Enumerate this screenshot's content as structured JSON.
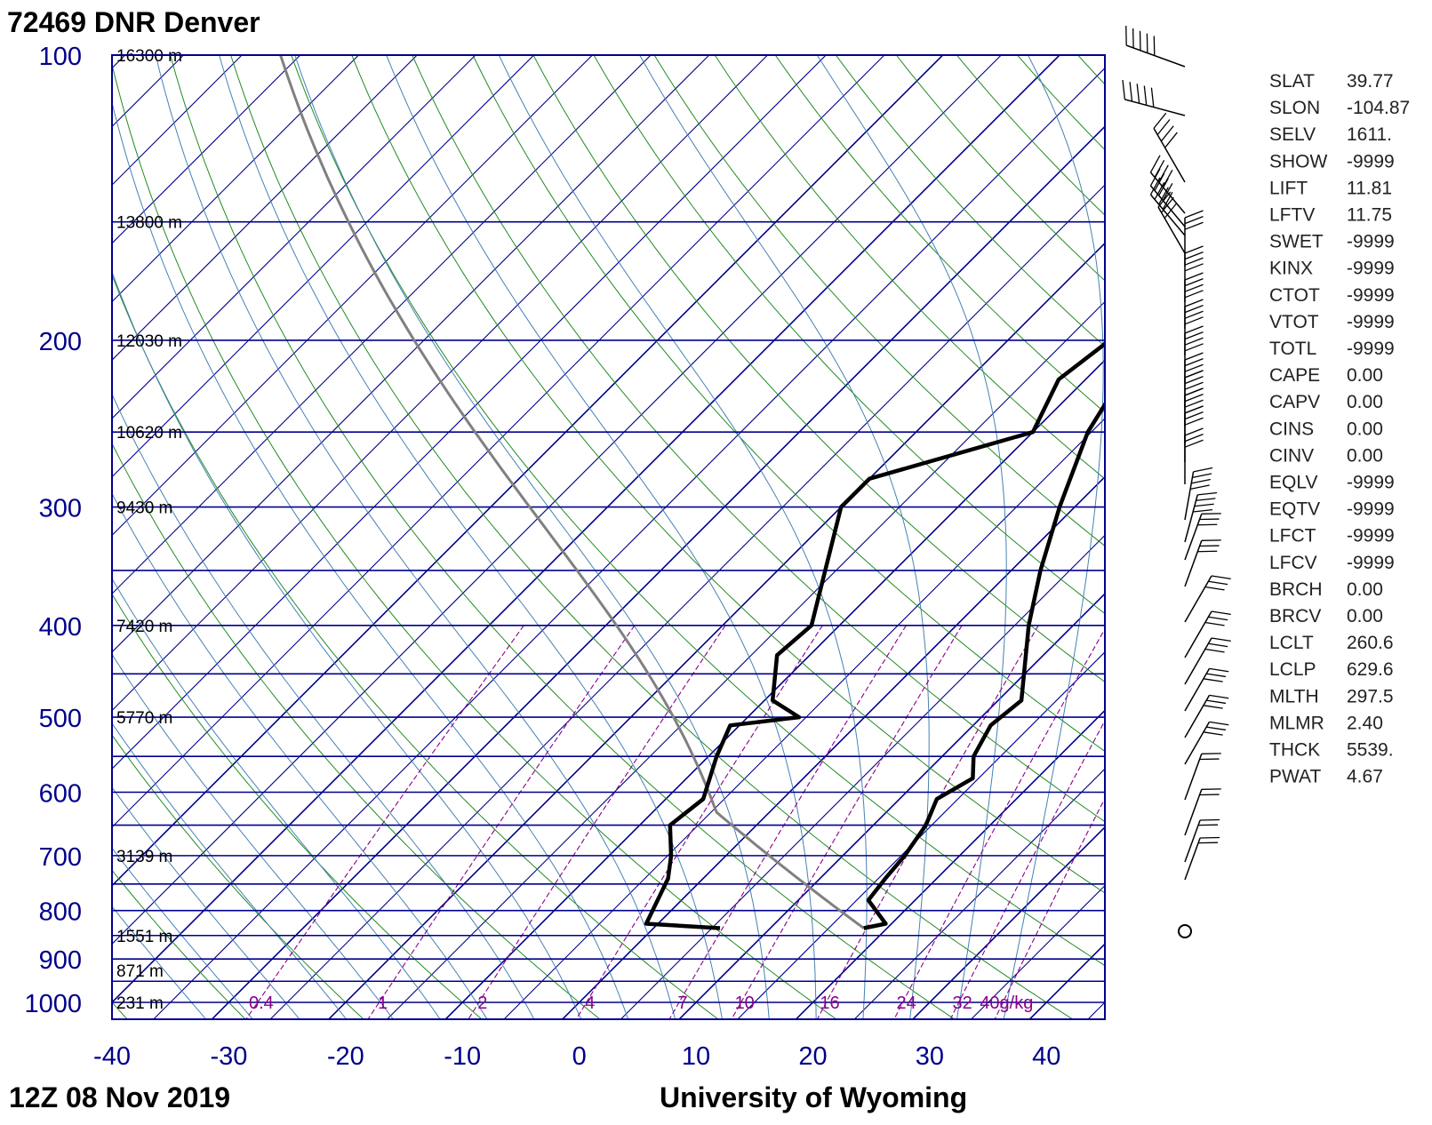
{
  "chart_data": {
    "type": "skew-t log-p",
    "title": "72469 DNR Denver",
    "footer_left": "12Z 08 Nov 2019",
    "footer_right": "University of Wyoming",
    "x_axis": {
      "range": [
        -40,
        45
      ],
      "ticks": [
        "-40",
        "-30",
        "-20",
        "-10",
        "0",
        "10",
        "20",
        "30",
        "40"
      ]
    },
    "y_axis": {
      "scale": "log",
      "range": [
        1050,
        100
      ],
      "ticks": [
        "100",
        "200",
        "300",
        "400",
        "500",
        "600",
        "700",
        "800",
        "900",
        "1000"
      ]
    },
    "height_labels": [
      {
        "p": 100,
        "text": "16300 m"
      },
      {
        "p": 150,
        "text": "13800 m"
      },
      {
        "p": 200,
        "text": "12030 m"
      },
      {
        "p": 250,
        "text": "10620 m"
      },
      {
        "p": 300,
        "text": "9430 m"
      },
      {
        "p": 400,
        "text": "7420 m"
      },
      {
        "p": 500,
        "text": "5770 m"
      },
      {
        "p": 700,
        "text": "3139 m"
      },
      {
        "p": 850,
        "text": "1551 m"
      },
      {
        "p": 925,
        "text": "871 m"
      },
      {
        "p": 1000,
        "text": "231 m"
      }
    ],
    "mixing_ratio_labels": [
      "0.4",
      "1",
      "2",
      "4",
      "7",
      "10",
      "16",
      "24",
      "32",
      "40g/kg"
    ],
    "temperature_profile": [
      {
        "p": 835,
        "t": 18.0
      },
      {
        "p": 826,
        "t": 19.5
      },
      {
        "p": 780,
        "t": 16.0
      },
      {
        "p": 740,
        "t": 15.6
      },
      {
        "p": 700,
        "t": 15.3
      },
      {
        "p": 650,
        "t": 14.5
      },
      {
        "p": 610,
        "t": 13.2
      },
      {
        "p": 580,
        "t": 14.5
      },
      {
        "p": 550,
        "t": 12.7
      },
      {
        "p": 510,
        "t": 11.5
      },
      {
        "p": 480,
        "t": 12.0
      },
      {
        "p": 400,
        "t": 6.2
      },
      {
        "p": 350,
        "t": 2.5
      },
      {
        "p": 300,
        "t": -1.3
      },
      {
        "p": 250,
        "t": -5.3
      },
      {
        "p": 220,
        "t": -7.0
      },
      {
        "p": 200,
        "t": -4.7
      },
      {
        "p": 190,
        "t": 0.3
      },
      {
        "p": 170,
        "t": -0.5
      },
      {
        "p": 150,
        "t": 3.0
      },
      {
        "p": 130,
        "t": 9.7
      },
      {
        "p": 118,
        "t": 15.2
      },
      {
        "p": 100,
        "t": 17.3
      }
    ],
    "dewpoint_profile": [
      {
        "p": 835,
        "t": 5.7
      },
      {
        "p": 826,
        "t": -1.0
      },
      {
        "p": 740,
        "t": -3.0
      },
      {
        "p": 700,
        "t": -4.7
      },
      {
        "p": 650,
        "t": -7.4
      },
      {
        "p": 610,
        "t": -6.8
      },
      {
        "p": 550,
        "t": -9.3
      },
      {
        "p": 510,
        "t": -10.8
      },
      {
        "p": 500,
        "t": -5.6
      },
      {
        "p": 480,
        "t": -9.3
      },
      {
        "p": 430,
        "t": -12.8
      },
      {
        "p": 400,
        "t": -12.4
      },
      {
        "p": 300,
        "t": -20.0
      },
      {
        "p": 280,
        "t": -20.0
      },
      {
        "p": 250,
        "t": -10.0
      },
      {
        "p": 220,
        "t": -12.3
      },
      {
        "p": 200,
        "t": -11.3
      },
      {
        "p": 180,
        "t": -11.6
      },
      {
        "p": 170,
        "t": -14.5
      },
      {
        "p": 150,
        "t": -11.6
      },
      {
        "p": 130,
        "t": -8.0
      },
      {
        "p": 120,
        "t": -6.0
      },
      {
        "p": 100,
        "t": -2.4
      }
    ],
    "parcel_start": {
      "p": 835,
      "t": 18.0
    },
    "isobars": [
      100,
      150,
      200,
      250,
      300,
      350,
      400,
      450,
      500,
      550,
      600,
      650,
      700,
      750,
      800,
      850,
      900,
      950,
      1000,
      1050
    ],
    "surface_wind": {
      "p": 835,
      "symbol": "calm"
    },
    "indices": [
      {
        "key": "SLAT",
        "value": "39.77"
      },
      {
        "key": "SLON",
        "value": "-104.87"
      },
      {
        "key": "SELV",
        "value": "1611."
      },
      {
        "key": "SHOW",
        "value": "-9999"
      },
      {
        "key": "LIFT",
        "value": "11.81"
      },
      {
        "key": "LFTV",
        "value": "11.75"
      },
      {
        "key": "SWET",
        "value": "-9999"
      },
      {
        "key": "KINX",
        "value": "-9999"
      },
      {
        "key": "CTOT",
        "value": "-9999"
      },
      {
        "key": "VTOT",
        "value": "-9999"
      },
      {
        "key": "TOTL",
        "value": "-9999"
      },
      {
        "key": "CAPE",
        "value": "0.00"
      },
      {
        "key": "CAPV",
        "value": "0.00"
      },
      {
        "key": "CINS",
        "value": "0.00"
      },
      {
        "key": "CINV",
        "value": "0.00"
      },
      {
        "key": "EQLV",
        "value": "-9999"
      },
      {
        "key": "EQTV",
        "value": "-9999"
      },
      {
        "key": "LFCT",
        "value": "-9999"
      },
      {
        "key": "LFCV",
        "value": "-9999"
      },
      {
        "key": "BRCH",
        "value": "0.00"
      },
      {
        "key": "BRCV",
        "value": "0.00"
      },
      {
        "key": "LCLT",
        "value": "260.6"
      },
      {
        "key": "LCLP",
        "value": "629.6"
      },
      {
        "key": "MLTH",
        "value": "297.5"
      },
      {
        "key": "MLMR",
        "value": "2.40"
      },
      {
        "key": "THCK",
        "value": "5539."
      },
      {
        "key": "PWAT",
        "value": "4.67"
      }
    ],
    "colors": {
      "frame": "#00008b",
      "isotherm": "#00008b",
      "dry_adiabat": "#228b22",
      "moist_adiabat": "#4682b4",
      "mixing_ratio": "#8b008b",
      "profile": "#000000",
      "parcel": "#808080"
    }
  }
}
